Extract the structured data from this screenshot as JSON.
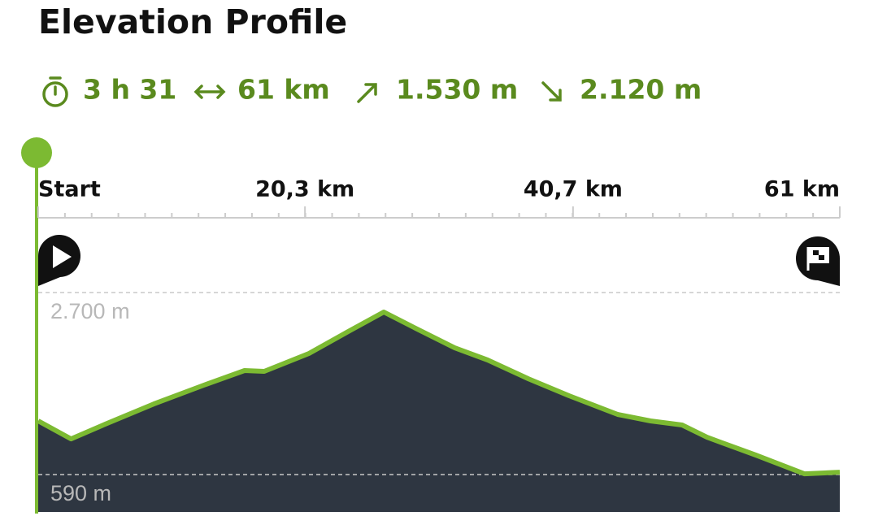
{
  "chart_data": {
    "type": "area",
    "title": "Elevation Profile",
    "stats": [
      "3 h 31",
      "61 km",
      "1.530 m",
      "2.120 m"
    ],
    "x": [
      0,
      2.5,
      5.1,
      8.8,
      12.6,
      15.7,
      17.2,
      20.6,
      23.7,
      26.3,
      28.6,
      31.7,
      34.2,
      37.3,
      40.4,
      44.1,
      46.6,
      49.0,
      50.9,
      54.6,
      58.3,
      61
    ],
    "values": [
      1212,
      1004,
      1174,
      1409,
      1626,
      1796,
      1786,
      1994,
      2257,
      2474,
      2295,
      2059,
      1918,
      1701,
      1504,
      1287,
      1212,
      1165,
      1023,
      816,
      599,
      618
    ],
    "line_color": "#7cba32",
    "fill_color": "#2e3641",
    "xlim": [
      0,
      61
    ],
    "xticks": [
      {
        "value": 0,
        "label": "Start"
      },
      {
        "value": 20.3,
        "label": "20,3 km"
      },
      {
        "value": 40.7,
        "label": "40,7 km"
      },
      {
        "value": 61,
        "label": "61 km"
      }
    ],
    "ylim": [
      157,
      2700
    ],
    "yticks": [
      {
        "value": 2700,
        "label": "2.700 m"
      },
      {
        "value": 590,
        "label": "590 m"
      }
    ],
    "grid": true
  }
}
